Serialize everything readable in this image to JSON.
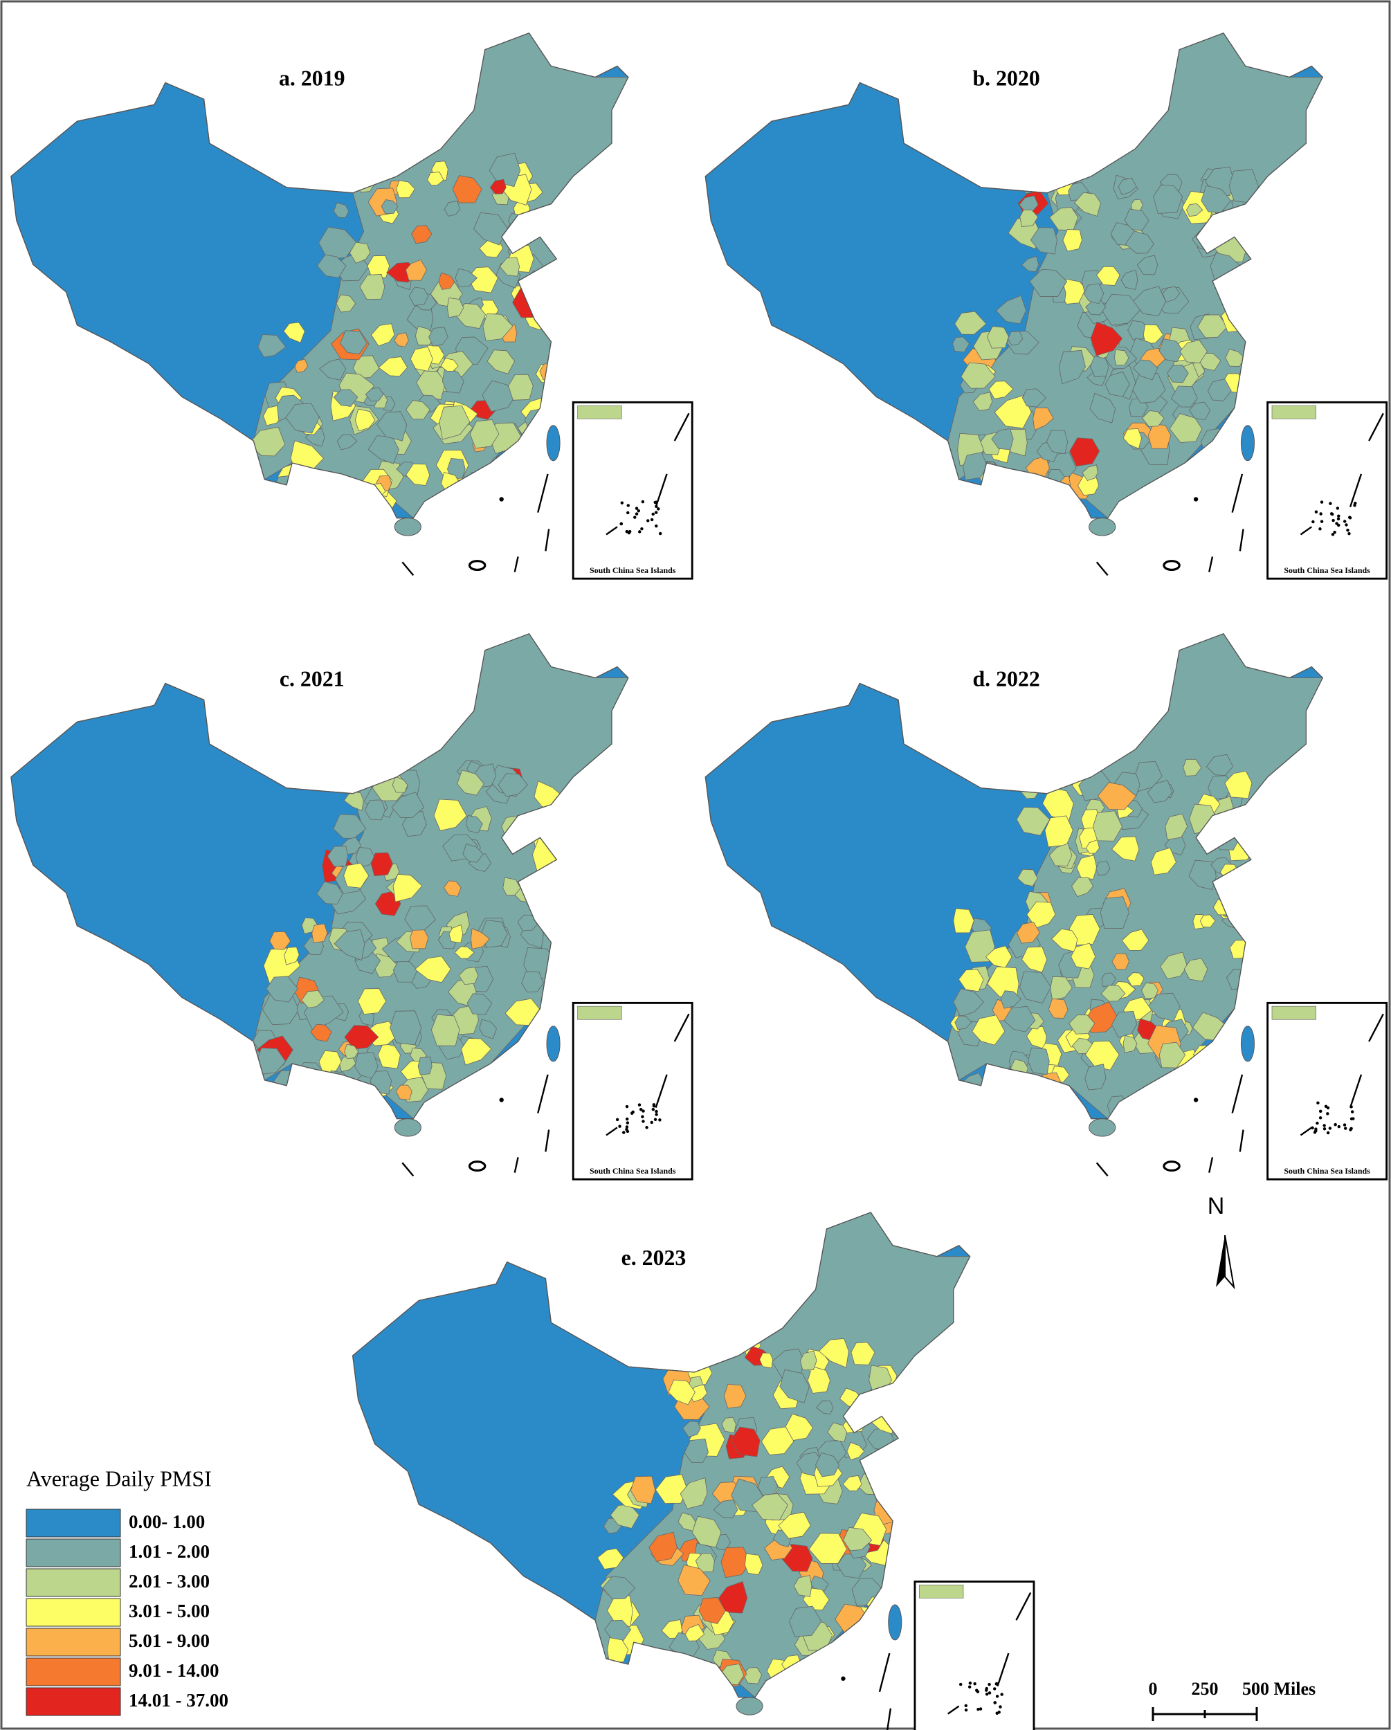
{
  "panels": [
    {
      "title": "a. 2019"
    },
    {
      "title": "b. 2020"
    },
    {
      "title": "c. 2021"
    },
    {
      "title": "d. 2022"
    },
    {
      "title": "e. 2023"
    }
  ],
  "inset_label": "South China Sea Islands",
  "legend": {
    "title": "Average Daily  PMSI",
    "classes": [
      {
        "label": "0.00- 1.00",
        "color": "#2b8bc9"
      },
      {
        "label": "1.01 - 2.00",
        "color": "#7aa9a6"
      },
      {
        "label": "2.01 - 3.00",
        "color": "#bcd68c"
      },
      {
        "label": "3.01 - 5.00",
        "color": "#fdfd66"
      },
      {
        "label": "5.01 - 9.00",
        "color": "#fcb04c"
      },
      {
        "label": "9.01 - 14.00",
        "color": "#f57a30"
      },
      {
        "label": "14.01 - 37.00",
        "color": "#e3251f"
      }
    ]
  },
  "north_arrow": "N",
  "scale_bar": {
    "labels": [
      "0",
      "250",
      "500 Miles"
    ]
  }
}
